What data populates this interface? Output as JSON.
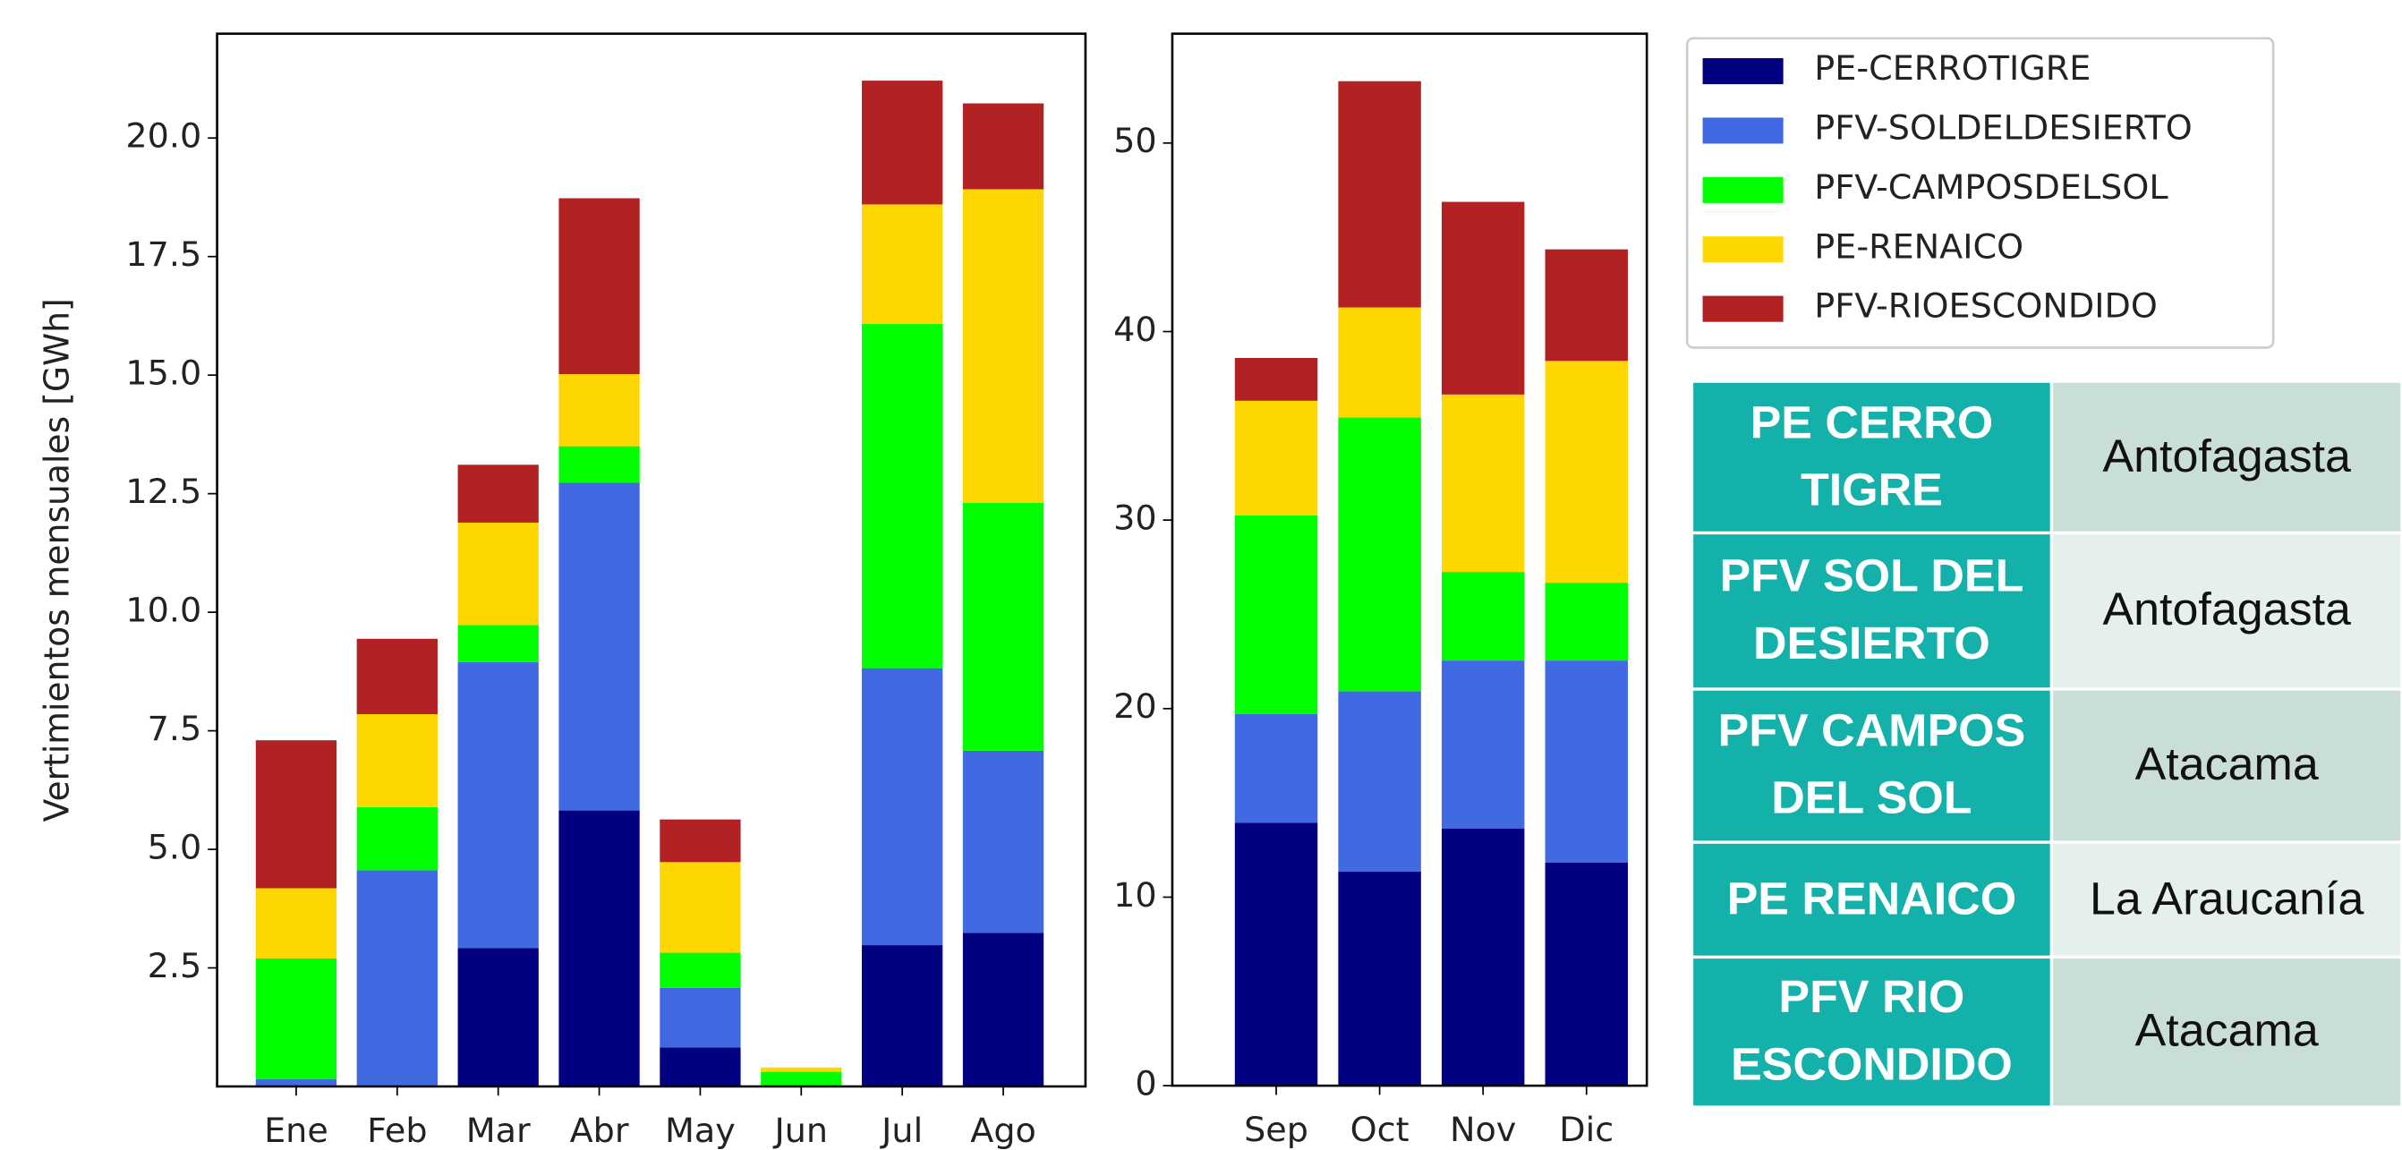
{
  "chart_data": [
    {
      "type": "bar",
      "stacked": true,
      "ylabel": "Vertimientos mensuales [GWh]",
      "categories": [
        "Ene",
        "Feb",
        "Mar",
        "Abr",
        "May",
        "Jun",
        "Jul",
        "Ago"
      ],
      "ylim": [
        0,
        22.2
      ],
      "yticks": [
        2.5,
        {
          "value": 5,
          "label": "5.0"
        },
        7.5,
        {
          "value": 10,
          "label": "10.0"
        },
        12.5,
        {
          "value": 15,
          "label": "15.0"
        },
        17.5,
        {
          "value": 20,
          "label": "20.0"
        }
      ],
      "series": [
        {
          "name": "PE-CERROTIGRE",
          "color": "#000080",
          "values": [
            0,
            0,
            2.92,
            5.82,
            0.82,
            0,
            2.98,
            3.24
          ]
        },
        {
          "name": "PFV-SOLDELDESIERTO",
          "color": "#4169e1",
          "values": [
            0.15,
            4.56,
            6.03,
            6.91,
            1.26,
            0,
            5.84,
            3.84
          ]
        },
        {
          "name": "PFV-CAMPOSDELSOL",
          "color": "#00ff00",
          "values": [
            2.55,
            1.33,
            0.78,
            0.77,
            0.74,
            0.31,
            7.26,
            5.23
          ]
        },
        {
          "name": "PE-RENAICO",
          "color": "#ffd700",
          "values": [
            1.48,
            1.96,
            2.16,
            1.52,
            1.91,
            0.09,
            2.52,
            6.61
          ]
        },
        {
          "name": "PFV-RIOESCONDIDO",
          "color": "#b22222",
          "values": [
            3.12,
            1.59,
            1.22,
            3.71,
            0.9,
            0,
            2.61,
            1.81
          ]
        }
      ]
    },
    {
      "type": "bar",
      "stacked": true,
      "categories": [
        "Sep",
        "Oct",
        "Nov",
        "Dic"
      ],
      "ylim": [
        0,
        55.8
      ],
      "yticks": [
        0,
        10,
        20,
        30,
        40,
        50
      ],
      "series": [
        {
          "name": "PE-CERROTIGRE",
          "color": "#000080",
          "values": [
            13.95,
            11.35,
            13.63,
            11.84
          ]
        },
        {
          "name": "PFV-SOLDELDESIERTO",
          "color": "#4169e1",
          "values": [
            5.76,
            9.57,
            8.92,
            10.71
          ]
        },
        {
          "name": "PFV-CAMPOSDELSOL",
          "color": "#00ff00",
          "values": [
            10.54,
            14.52,
            4.7,
            4.13
          ]
        },
        {
          "name": "PE-RENAICO",
          "color": "#ffd700",
          "values": [
            6.08,
            5.84,
            9.41,
            11.76
          ]
        },
        {
          "name": "PFV-RIOESCONDIDO",
          "color": "#b22222",
          "values": [
            2.27,
            12.0,
            10.22,
            5.92
          ]
        }
      ]
    }
  ],
  "table": {
    "rows": [
      [
        "PE CERRO TIGRE",
        "Antofagasta"
      ],
      [
        "PFV SOL DEL DESIERTO",
        "Antofagasta"
      ],
      [
        "PFV CAMPOS DEL SOL",
        "Atacama"
      ],
      [
        "PE RENAICO",
        "La Araucanía"
      ],
      [
        "PFV RIO ESCONDIDO",
        "Atacama"
      ]
    ]
  }
}
